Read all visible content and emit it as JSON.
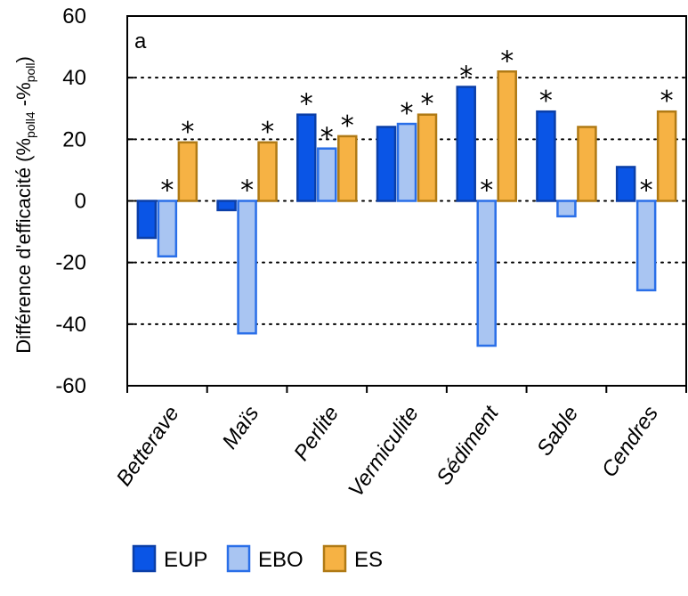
{
  "chart_data": {
    "type": "bar",
    "panel_label": "a",
    "ylabel": "Différence d'efficacité (%",
    "ylabel_sub1": "poll4",
    "ylabel_mid": " -%",
    "ylabel_sub2": "poll",
    "ylabel_end": ")",
    "ylim": [
      -60,
      60
    ],
    "yticks": [
      60,
      40,
      20,
      0,
      -20,
      -40,
      -60
    ],
    "grid": "dotted horizontal at 40, 20, 0, -20, -40",
    "legend_position": "bottom",
    "categories": [
      "Betterave",
      "Maïs",
      "Perlite",
      "Vermiculite",
      "Sédiment",
      "Sable",
      "Cendres"
    ],
    "series": [
      {
        "name": "EUP",
        "fill": "#0a55e6",
        "stroke": "#0b3fa8",
        "values": [
          -12,
          -3,
          28,
          24,
          37,
          29,
          11
        ]
      },
      {
        "name": "EBO",
        "fill": "#a9c5f2",
        "stroke": "#2a6fe8",
        "values": [
          -18,
          -43,
          17,
          25,
          -47,
          -5,
          -29
        ]
      },
      {
        "name": "ES",
        "fill": "#f6b244",
        "stroke": "#b07a15",
        "values": [
          19,
          19,
          21,
          28,
          42,
          24,
          29
        ]
      }
    ],
    "annotations": [
      {
        "category": 0,
        "series": 1,
        "text": "*"
      },
      {
        "category": 0,
        "series": 2,
        "text": "*"
      },
      {
        "category": 1,
        "series": 1,
        "text": "*"
      },
      {
        "category": 1,
        "series": 2,
        "text": "*"
      },
      {
        "category": 2,
        "series": 0,
        "text": "*"
      },
      {
        "category": 2,
        "series": 1,
        "text": "*"
      },
      {
        "category": 2,
        "series": 2,
        "text": "*"
      },
      {
        "category": 3,
        "series": 1,
        "text": "*"
      },
      {
        "category": 3,
        "series": 2,
        "text": "*"
      },
      {
        "category": 4,
        "series": 0,
        "text": "*"
      },
      {
        "category": 4,
        "series": 1,
        "text": "*"
      },
      {
        "category": 4,
        "series": 2,
        "text": "*"
      },
      {
        "category": 5,
        "series": 0,
        "text": "*"
      },
      {
        "category": 6,
        "series": 1,
        "text": "*"
      },
      {
        "category": 6,
        "series": 2,
        "text": "*"
      }
    ]
  }
}
